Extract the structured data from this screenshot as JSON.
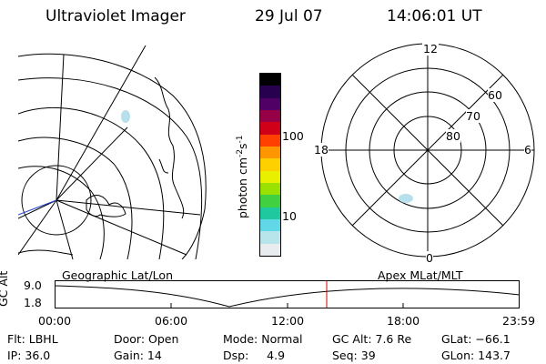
{
  "header": {
    "title": "Ultraviolet Imager",
    "date": "29 Jul 07",
    "time": "14:06:01 UT"
  },
  "colorbar": {
    "unit_text": "photon cm",
    "unit_exp1": "-2",
    "unit_s": "s",
    "unit_exp2": "-1",
    "ticks": [
      "100",
      "10"
    ],
    "colors": [
      "#000000",
      "#280050",
      "#500064",
      "#960046",
      "#d00018",
      "#ff4000",
      "#ff9600",
      "#ffd000",
      "#e8f000",
      "#9ae000",
      "#40d040",
      "#20c8a0",
      "#60d8e8",
      "#b8e4ec",
      "#e8ecee"
    ]
  },
  "polar_plot": {
    "mlt_labels": {
      "top": "12",
      "left": "18",
      "right": "6",
      "bottom": "0"
    },
    "lat_labels": [
      "60",
      "70",
      "80"
    ]
  },
  "timeline": {
    "left_label": "Geographic Lat/Lon",
    "right_label": "Apex MLat/MLT",
    "y_title": "GC Alt",
    "y_ticks": [
      "9.0",
      "1.8"
    ],
    "x_ticks": [
      "00:00",
      "06:00",
      "12:00",
      "18:00",
      "23:59"
    ]
  },
  "status": {
    "flt": "Flt: LBHL",
    "ip": "IP: 36.0",
    "door": "Door: Open",
    "gain": "Gain: 14",
    "mode": "Mode: Normal",
    "dsp": "Dsp:     4.9",
    "gc_alt": "GC Alt: 7.6 Re",
    "seq": "Seq: 39",
    "glat": "GLat: −6 6.1",
    "glon": "GLon: 143.7"
  }
}
